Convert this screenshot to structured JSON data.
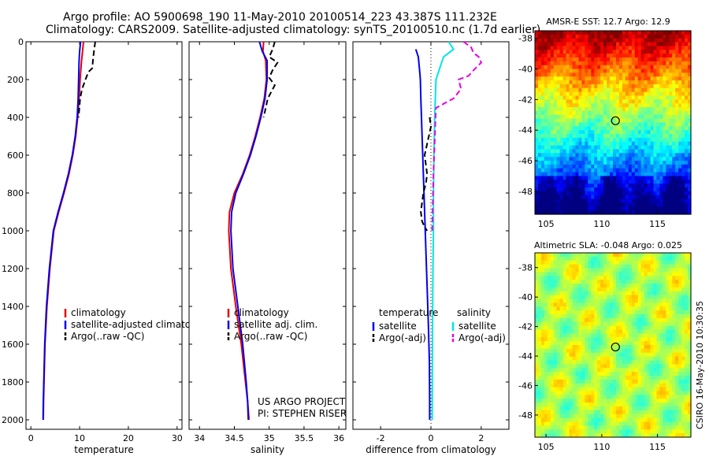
{
  "header": {
    "title1": "Argo profile: AO 5900698_190 11-May-2010 20100514_223 43.387S 111.232E",
    "title2": "Climatology: CARS2009. Satellite-adjusted climatology: synTS_20100510.nc (1.7d earlier)"
  },
  "colors": {
    "red": "#e60000",
    "blue": "#0000ee",
    "black": "#000000",
    "cyan": "#00e6e6",
    "magenta": "#e600e6"
  },
  "chart_data": [
    {
      "id": "temperature",
      "type": "line",
      "xlabel": "temperature",
      "xlim": [
        -1,
        31
      ],
      "xticks": [
        0,
        10,
        20,
        30
      ],
      "ylim": [
        0,
        2050
      ],
      "yticks": [
        0,
        200,
        400,
        600,
        800,
        1000,
        1200,
        1400,
        1600,
        1800,
        2000
      ],
      "legend": {
        "items": [
          {
            "label": "climatology",
            "color": "red"
          },
          {
            "label": "satellite-adjusted climatology",
            "color": "blue"
          },
          {
            "label": "Argo(..raw -QC)",
            "color": "black"
          }
        ]
      },
      "series": [
        {
          "name": "climatology",
          "color": "red",
          "dash": false,
          "x": [
            10.8,
            10.6,
            10.4,
            10.1,
            9.9,
            9.6,
            9.2,
            8.6,
            7.8,
            6.8,
            5.7,
            4.7,
            3.9,
            3.3,
            2.9,
            2.7,
            2.6,
            2.55
          ],
          "y": [
            0,
            50,
            100,
            200,
            300,
            400,
            500,
            600,
            700,
            800,
            900,
            1000,
            1200,
            1400,
            1600,
            1800,
            1900,
            2000
          ]
        },
        {
          "name": "satellite-adjusted climatology",
          "color": "blue",
          "dash": false,
          "x": [
            10.2,
            10.0,
            9.9,
            9.8,
            9.7,
            9.5,
            9.1,
            8.5,
            7.7,
            6.7,
            5.6,
            4.6,
            3.8,
            3.2,
            2.85,
            2.65,
            2.55,
            2.5
          ],
          "y": [
            0,
            50,
            100,
            200,
            300,
            400,
            500,
            600,
            700,
            800,
            900,
            1000,
            1200,
            1400,
            1600,
            1800,
            1900,
            2000
          ]
        },
        {
          "name": "Argo(..raw -QC)",
          "color": "black",
          "dash": true,
          "x": [
            13.2,
            13.0,
            12.8,
            12.6,
            11.8,
            11.2,
            10.5,
            10.1,
            9.8
          ],
          "y": [
            0,
            40,
            80,
            140,
            160,
            200,
            250,
            300,
            400
          ]
        }
      ]
    },
    {
      "id": "salinity",
      "type": "line",
      "xlabel": "salinity",
      "xlim": [
        33.85,
        36.1
      ],
      "xticks": [
        34,
        34.5,
        35,
        35.5,
        36
      ],
      "ylim": [
        0,
        2050
      ],
      "yticks": [
        0,
        200,
        400,
        600,
        800,
        1000,
        1200,
        1400,
        1600,
        1800,
        2000
      ],
      "legend": {
        "items": [
          {
            "label": "climatology",
            "color": "red"
          },
          {
            "label": "satellite adj. clim.",
            "color": "blue"
          },
          {
            "label": "Argo(..raw -QC)",
            "color": "black"
          }
        ]
      },
      "annotation": [
        "US ARGO PROJECT",
        "PI: STEPHEN RISER"
      ],
      "series": [
        {
          "name": "climatology",
          "color": "red",
          "dash": false,
          "x": [
            34.92,
            34.91,
            34.95,
            34.96,
            34.93,
            34.87,
            34.8,
            34.72,
            34.62,
            34.5,
            34.43,
            34.42,
            34.45,
            34.52,
            34.6,
            34.66,
            34.69,
            34.71
          ],
          "y": [
            0,
            50,
            100,
            200,
            300,
            400,
            500,
            600,
            700,
            800,
            900,
            1000,
            1200,
            1400,
            1600,
            1800,
            1900,
            2000
          ]
        },
        {
          "name": "satellite adj. clim.",
          "color": "blue",
          "dash": false,
          "x": [
            34.86,
            34.9,
            34.97,
            34.97,
            34.94,
            34.88,
            34.81,
            34.73,
            34.63,
            34.52,
            34.46,
            34.45,
            34.48,
            34.55,
            34.62,
            34.67,
            34.69,
            34.7
          ],
          "y": [
            0,
            50,
            100,
            200,
            300,
            400,
            500,
            600,
            700,
            800,
            900,
            1000,
            1200,
            1400,
            1600,
            1800,
            1900,
            2000
          ]
        },
        {
          "name": "Argo(..raw -QC)",
          "color": "black",
          "dash": true,
          "x": [
            35.08,
            35.05,
            35.0,
            35.12,
            35.05,
            35.0,
            35.08,
            34.98,
            34.95,
            34.92
          ],
          "y": [
            0,
            40,
            80,
            110,
            150,
            190,
            230,
            300,
            350,
            400
          ]
        }
      ]
    },
    {
      "id": "difference",
      "type": "line",
      "xlabel": "difference from climatology",
      "xlim": [
        -3.1,
        3.1
      ],
      "xticks": [
        -2,
        0,
        2
      ],
      "ylim": [
        0,
        2050
      ],
      "yticks": [
        0,
        200,
        400,
        600,
        800,
        1000,
        1200,
        1400,
        1600,
        1800,
        2000
      ],
      "legend": {
        "left_title": "temperature",
        "right_title": "salinity",
        "items": [
          {
            "label": "satellite",
            "color": "blue",
            "column": "left"
          },
          {
            "label": "Argo(-adj)",
            "color": "black",
            "column": "left"
          },
          {
            "label": "satellite",
            "color": "cyan",
            "column": "right"
          },
          {
            "label": "Argo(-adj)",
            "color": "magenta",
            "column": "right"
          }
        ]
      },
      "series": [
        {
          "name": "temperature satellite",
          "color": "blue",
          "dash": false,
          "x": [
            -0.6,
            -0.5,
            -0.45,
            -0.42,
            -0.4,
            -0.35,
            -0.3,
            -0.25,
            -0.2,
            -0.15,
            -0.1,
            -0.06,
            -0.05,
            -0.05
          ],
          "y": [
            40,
            80,
            150,
            200,
            300,
            500,
            700,
            900,
            1100,
            1300,
            1500,
            1700,
            1900,
            2000
          ]
        },
        {
          "name": "temperature Argo(-adj)",
          "color": "black",
          "dash": true,
          "x": [
            -0.05,
            0.0,
            -0.25,
            -0.15,
            -0.2,
            -0.3,
            -0.35,
            -0.4,
            -0.35,
            -0.25,
            -0.15
          ],
          "y": [
            400,
            450,
            600,
            700,
            750,
            800,
            850,
            900,
            950,
            980,
            1000
          ]
        },
        {
          "name": "salinity satellite",
          "color": "cyan",
          "dash": false,
          "x": [
            0.7,
            0.9,
            0.5,
            0.2,
            0.15,
            0.12,
            0.1,
            0.1,
            0.08,
            0.07,
            0.06,
            0.05
          ],
          "y": [
            0,
            40,
            80,
            200,
            400,
            600,
            800,
            1000,
            1200,
            1400,
            1600,
            2000
          ]
        },
        {
          "name": "salinity Argo(-adj)",
          "color": "magenta",
          "dash": true,
          "x": [
            1.3,
            1.6,
            1.7,
            1.9,
            2.0,
            1.7,
            1.5,
            1.1,
            1.2,
            0.9,
            0.2,
            0.1,
            0.05
          ],
          "y": [
            0,
            30,
            60,
            80,
            110,
            150,
            180,
            200,
            250,
            300,
            350,
            700,
            1000
          ]
        },
        {
          "name": "zero reference",
          "color": "black",
          "dash": "dot",
          "x": [
            0.0,
            0.0
          ],
          "y": [
            0,
            2050
          ]
        }
      ]
    },
    {
      "id": "amsr_sst",
      "type": "heatmap",
      "title": "AMSR-E SST: 12.7 Argo: 12.9",
      "xlim": [
        104,
        118
      ],
      "ylim": [
        -49.5,
        -37.5
      ],
      "xticks": [
        105,
        110,
        115
      ],
      "yticks": [
        -38,
        -40,
        -42,
        -44,
        -46,
        -48
      ],
      "ytick_labels": [
        "-38",
        "-40",
        "-42",
        "-44",
        "-46",
        "-48"
      ],
      "marker": {
        "lon": 111.232,
        "lat": -43.387
      },
      "colormap": "jet",
      "bands": [
        "dark red",
        "orange",
        "yellow",
        "green",
        "cyan",
        "blue",
        "navy"
      ]
    },
    {
      "id": "altimetric_sla",
      "type": "heatmap",
      "title": "Altimetric SLA: -0.048 Argo: 0.025",
      "xlim": [
        104,
        118
      ],
      "ylim": [
        -49.5,
        -37
      ],
      "xticks": [
        105,
        110,
        115
      ],
      "yticks": [
        -38,
        -40,
        -42,
        -44,
        -46,
        -48
      ],
      "ytick_labels": [
        "-38",
        "-40",
        "-42",
        "-44",
        "-46",
        "-48"
      ],
      "marker": {
        "lon": 111.232,
        "lat": -43.387
      },
      "colormap": "jet"
    }
  ],
  "footer": {
    "credit": "CSIRO 16-May-2010 10:30:35"
  }
}
